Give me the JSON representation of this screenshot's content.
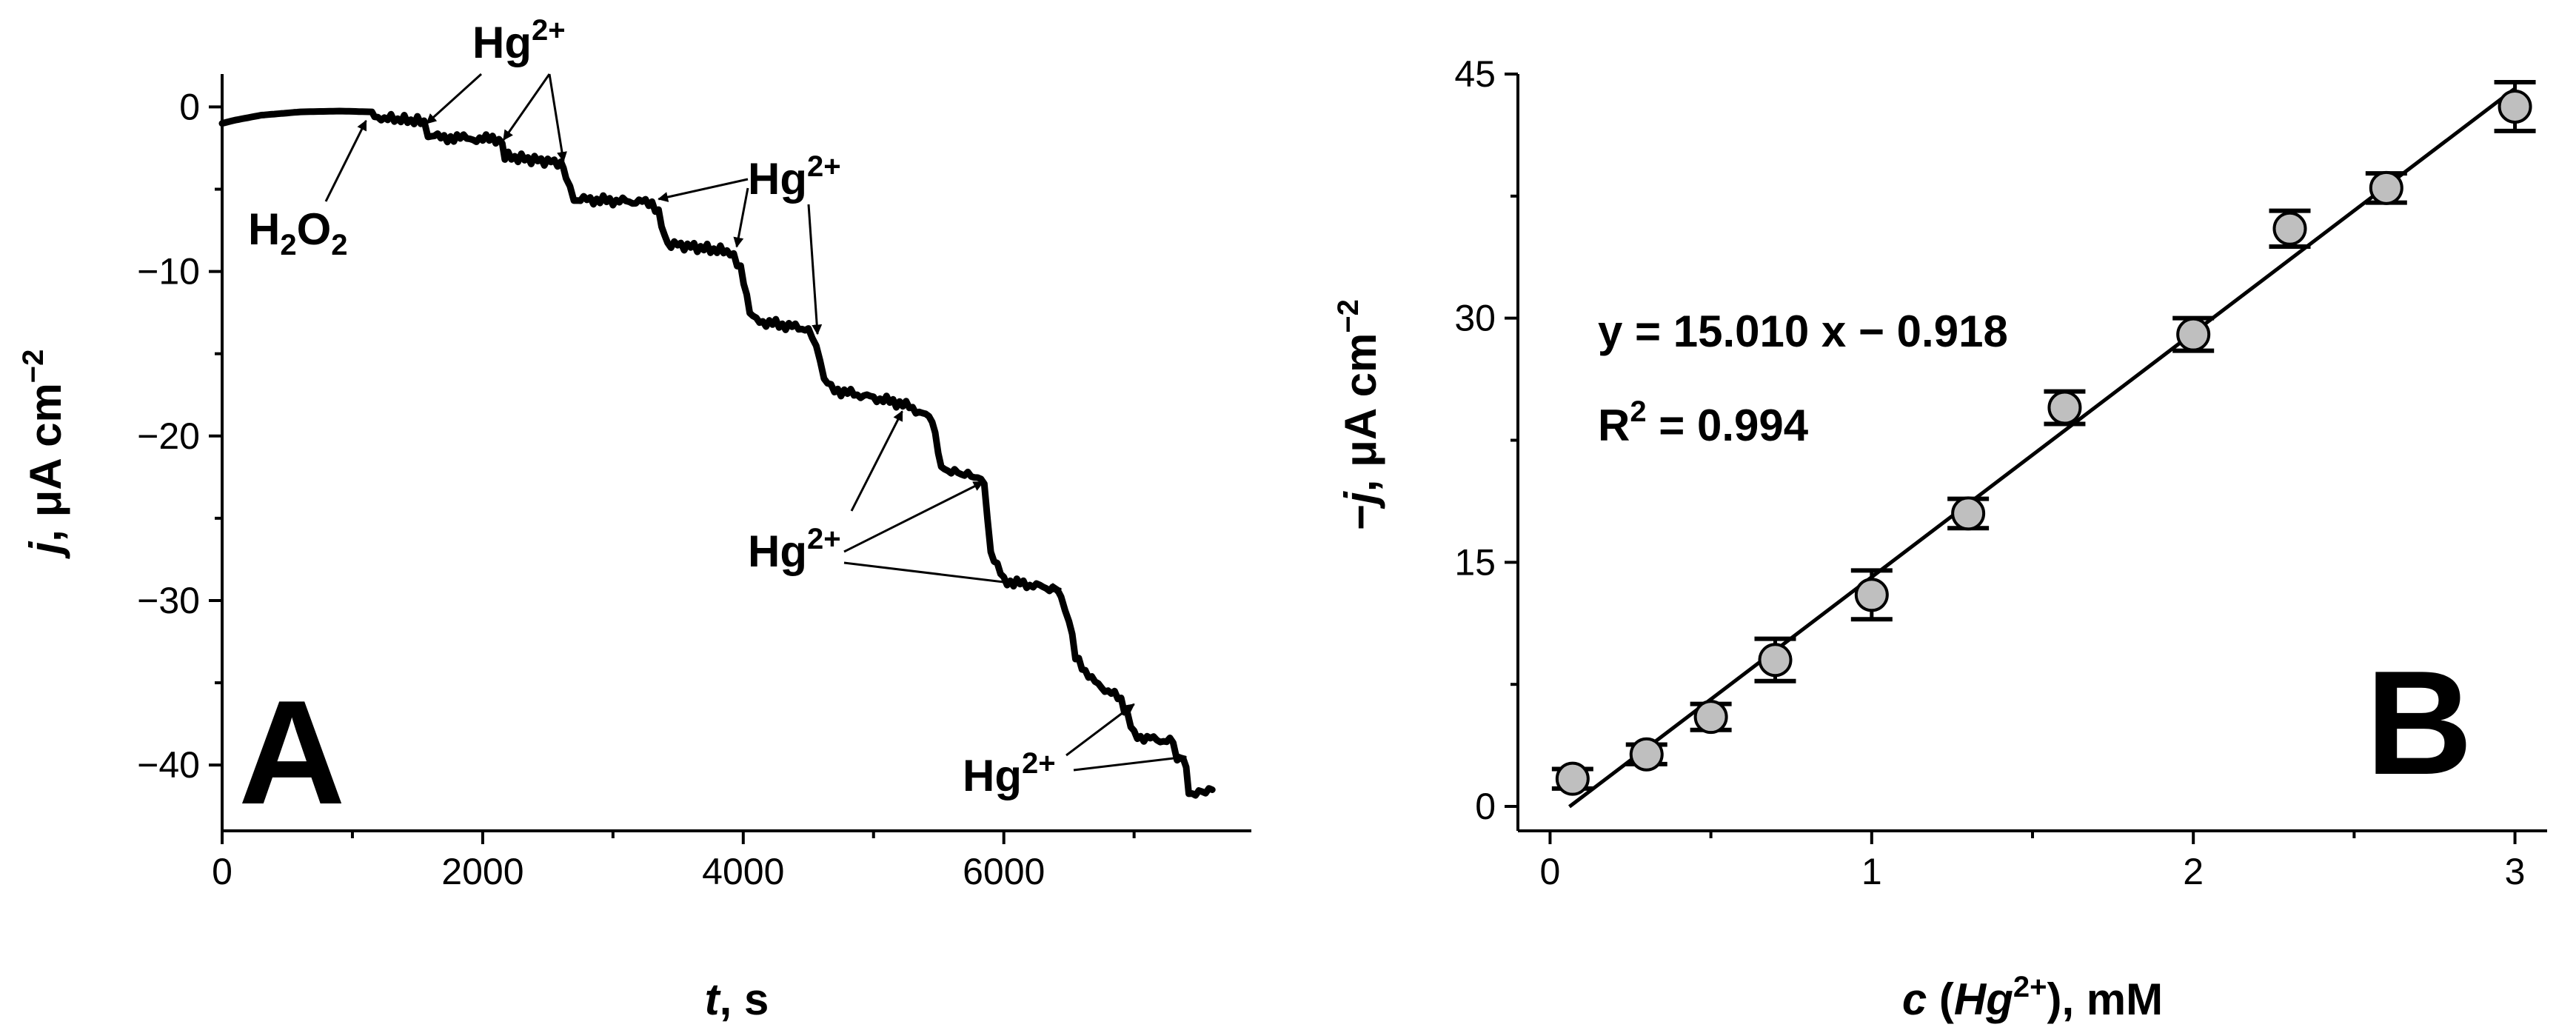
{
  "chart_data": [
    {
      "panel_label": "A",
      "type": "line",
      "xlabel": {
        "italic": "t",
        "rest": ", s"
      },
      "ylabel": {
        "italic": "j",
        "rest": ", μA cm",
        "sup": "−2"
      },
      "xlim": [
        0,
        7900
      ],
      "ylim": [
        -44,
        2
      ],
      "xticks": [
        0,
        2000,
        4000,
        6000
      ],
      "xtick_labels": [
        "0",
        "2000",
        "4000",
        "6000"
      ],
      "yticks": [
        0,
        -10,
        -20,
        -30,
        -40
      ],
      "ytick_labels": [
        "0",
        "−10",
        "−20",
        "−30",
        "−40"
      ],
      "series": [
        {
          "x": [
            0,
            100,
            300,
            600,
            900,
            1150,
            1170,
            1550,
            1580,
            2150,
            2170,
            2600,
            2640,
            2700,
            3300,
            3350,
            3420,
            3900,
            3980,
            4050,
            4100,
            4500,
            4560,
            4620,
            4700,
            5200,
            5300,
            5450,
            5520,
            5800,
            5850,
            5900,
            6000,
            6400,
            6440,
            6500,
            6550,
            6700,
            6800,
            6900,
            6950,
            7000,
            7050,
            7300,
            7330,
            7400,
            7420,
            7600
          ],
          "y": [
            -1.0,
            -0.8,
            -0.5,
            -0.3,
            -0.25,
            -0.3,
            -0.6,
            -0.9,
            -1.8,
            -2.0,
            -3.0,
            -3.4,
            -4.5,
            -5.6,
            -5.8,
            -6.5,
            -8.3,
            -8.8,
            -9.8,
            -12.5,
            -13.0,
            -13.5,
            -14.5,
            -16.5,
            -17.2,
            -18.0,
            -18.3,
            -19.0,
            -22.0,
            -22.5,
            -23.0,
            -27.0,
            -28.8,
            -29.3,
            -30.0,
            -31.0,
            -33.5,
            -35.0,
            -35.5,
            -36.0,
            -37.0,
            -38.2,
            -38.3,
            -38.6,
            -39.5,
            -40.0,
            -41.8,
            -41.5
          ]
        }
      ],
      "annotations": [
        {
          "text": "H",
          "sub1": "2",
          "mid": "O",
          "sub2": "2",
          "x": 1150,
          "y": -0.3
        },
        {
          "text": "Hg",
          "sup": "2+",
          "targets": [
            [
              1570,
              -1.0
            ],
            [
              2160,
              -2.0
            ],
            [
              2620,
              -3.3
            ]
          ]
        },
        {
          "text": "Hg",
          "sup": "2+",
          "targets": [
            [
              3350,
              -5.6
            ],
            [
              3950,
              -8.5
            ],
            [
              4570,
              -13.8
            ]
          ]
        },
        {
          "text": "Hg",
          "sup": "2+",
          "targets": [
            [
              5220,
              -18.5
            ],
            [
              5840,
              -22.8
            ],
            [
              6440,
              -29.3
            ]
          ]
        },
        {
          "text": "Hg",
          "sup": "2+",
          "targets": [
            [
              7000,
              -36.3
            ],
            [
              7400,
              -39.5
            ]
          ]
        }
      ]
    },
    {
      "panel_label": "B",
      "type": "scatter",
      "xlabel": {
        "italic1": "c",
        "mid": " (",
        "italic2": "Hg",
        "sup": "2+",
        "rest": "), mM"
      },
      "ylabel": {
        "pre": "−",
        "italic": "j",
        "rest": ", μA cm",
        "sup": "−2"
      },
      "xlim": [
        -0.1,
        3.1
      ],
      "ylim": [
        -1.5,
        45
      ],
      "xticks": [
        0,
        1,
        2,
        3
      ],
      "xtick_labels": [
        "0",
        "1",
        "2",
        "3"
      ],
      "yticks": [
        0,
        15,
        30,
        45
      ],
      "ytick_labels": [
        "0",
        "15",
        "30",
        "45"
      ],
      "points": {
        "x": [
          0.07,
          0.3,
          0.5,
          0.7,
          1.0,
          1.3,
          1.6,
          2.0,
          2.3,
          2.6,
          3.0
        ],
        "y": [
          1.7,
          3.2,
          5.5,
          9.0,
          13.0,
          18.0,
          24.5,
          29.0,
          35.5,
          38.0,
          43.0
        ],
        "yerr": [
          0.6,
          0.6,
          0.8,
          1.3,
          1.5,
          0.9,
          1.0,
          1.0,
          1.1,
          0.9,
          1.5
        ]
      },
      "fit": {
        "slope": 15.01,
        "intercept": -0.918,
        "x_range": [
          0.06,
          3.0
        ]
      },
      "equation": "y = 15.010 x − 0.918",
      "r2": {
        "pre": "R",
        "sup": "2",
        "rest": " = 0.994"
      },
      "marker_color": "#bfbfbf"
    }
  ]
}
